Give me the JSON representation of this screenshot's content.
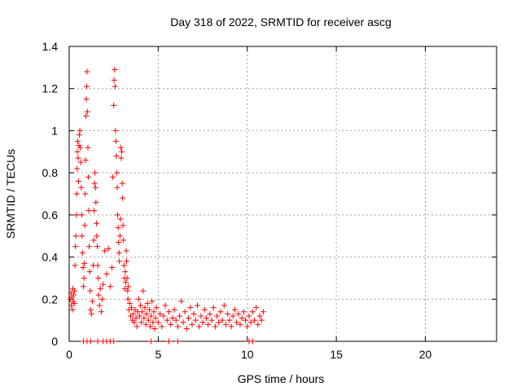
{
  "chart_data": {
    "type": "scatter",
    "title": "Day 318 of 2022, SRMTID for receiver ascg",
    "xlabel": "GPS time / hours",
    "ylabel": "SRMTID / TECUs",
    "xlim": [
      0,
      24
    ],
    "ylim": [
      0,
      1.4
    ],
    "x_ticks": [
      0,
      5,
      10,
      15,
      20
    ],
    "x_tick_labels": [
      "0",
      "5",
      "10",
      "15",
      "20"
    ],
    "y_ticks": [
      0,
      0.2,
      0.4,
      0.6,
      0.8,
      1,
      1.2,
      1.4
    ],
    "y_tick_labels": [
      "0",
      "0.2",
      "0.4",
      "0.6",
      "0.8",
      "1",
      "1.2",
      "1.4"
    ],
    "grid": true,
    "marker": "+",
    "series": [
      {
        "name": "SRMTID",
        "color": "#ff0000",
        "points": [
          [
            0.05,
            0.2
          ],
          [
            0.1,
            0.23
          ],
          [
            0.12,
            0.17
          ],
          [
            0.15,
            0.21
          ],
          [
            0.18,
            0.15
          ],
          [
            0.2,
            0.25
          ],
          [
            0.22,
            0.19
          ],
          [
            0.25,
            0.22
          ],
          [
            0.28,
            0.18
          ],
          [
            0.3,
            0.24
          ],
          [
            0.33,
            0.36
          ],
          [
            0.35,
            0.45
          ],
          [
            0.37,
            0.5
          ],
          [
            0.4,
            0.6
          ],
          [
            0.42,
            0.7
          ],
          [
            0.44,
            0.82
          ],
          [
            0.46,
            0.9
          ],
          [
            0.48,
            0.95
          ],
          [
            0.5,
            0.87
          ],
          [
            0.52,
            0.76
          ],
          [
            0.55,
            0.93
          ],
          [
            0.57,
            0.98
          ],
          [
            0.6,
            1.0
          ],
          [
            0.62,
            0.92
          ],
          [
            0.65,
            0.85
          ],
          [
            0.68,
            0.73
          ],
          [
            0.7,
            0.6
          ],
          [
            0.72,
            0.5
          ],
          [
            0.75,
            0.42
          ],
          [
            0.78,
            0.35
          ],
          [
            0.8,
            0.26
          ],
          [
            0.83,
            0.3
          ],
          [
            0.85,
            0.37
          ],
          [
            0.88,
            0.55
          ],
          [
            0.9,
            0.7
          ],
          [
            0.92,
            0.86
          ],
          [
            0.94,
            1.07
          ],
          [
            0.96,
            1.15
          ],
          [
            0.98,
            1.21
          ],
          [
            1.0,
            1.28
          ],
          [
            1.02,
            1.09
          ],
          [
            1.05,
            0.92
          ],
          [
            1.07,
            0.78
          ],
          [
            1.1,
            0.62
          ],
          [
            1.12,
            0.45
          ],
          [
            1.15,
            0.33
          ],
          [
            1.18,
            0.24
          ],
          [
            1.2,
            0.15
          ],
          [
            1.25,
            0.13
          ],
          [
            1.3,
            0.19
          ],
          [
            1.35,
            0.36
          ],
          [
            1.38,
            0.48
          ],
          [
            1.4,
            0.62
          ],
          [
            1.42,
            0.75
          ],
          [
            1.45,
            0.8
          ],
          [
            1.48,
            0.73
          ],
          [
            1.5,
            0.66
          ],
          [
            1.53,
            0.56
          ],
          [
            1.55,
            0.5
          ],
          [
            1.58,
            0.45
          ],
          [
            1.6,
            0.36
          ],
          [
            1.63,
            0.3
          ],
          [
            1.66,
            0.22
          ],
          [
            1.7,
            0.17
          ],
          [
            1.75,
            0.25
          ],
          [
            1.8,
            0.14
          ],
          [
            1.85,
            0.2
          ],
          [
            1.9,
            0.27
          ],
          [
            2.0,
            0.43
          ],
          [
            2.1,
            0.32
          ],
          [
            2.2,
            0.44
          ],
          [
            2.3,
            0.26
          ],
          [
            2.4,
            0.35
          ],
          [
            2.45,
            0.78
          ],
          [
            2.5,
            1.12
          ],
          [
            2.52,
            1.24
          ],
          [
            2.55,
            1.29
          ],
          [
            2.58,
            1.21
          ],
          [
            2.6,
            1.0
          ],
          [
            2.62,
            0.95
          ],
          [
            2.65,
            0.88
          ],
          [
            2.68,
            0.8
          ],
          [
            2.7,
            0.73
          ],
          [
            2.72,
            0.6
          ],
          [
            2.75,
            0.54
          ],
          [
            2.78,
            0.47
          ],
          [
            2.8,
            0.42
          ],
          [
            2.82,
            0.38
          ],
          [
            2.85,
            0.5
          ],
          [
            2.88,
            0.58
          ],
          [
            2.9,
            0.92
          ],
          [
            2.92,
            0.87
          ],
          [
            2.95,
            0.9
          ],
          [
            2.98,
            0.75
          ],
          [
            3.0,
            0.68
          ],
          [
            3.02,
            0.55
          ],
          [
            3.05,
            0.48
          ],
          [
            3.08,
            0.36
          ],
          [
            3.1,
            0.3
          ],
          [
            3.12,
            0.25
          ],
          [
            3.15,
            0.33
          ],
          [
            3.18,
            0.28
          ],
          [
            3.2,
            0.43
          ],
          [
            3.22,
            0.38
          ],
          [
            3.25,
            0.3
          ],
          [
            3.28,
            0.24
          ],
          [
            3.3,
            0.2
          ],
          [
            3.32,
            0.26
          ],
          [
            3.35,
            0.15
          ],
          [
            3.4,
            0.18
          ],
          [
            3.45,
            0.12
          ],
          [
            3.5,
            0.16
          ],
          [
            3.55,
            0.1
          ],
          [
            3.6,
            0.13
          ],
          [
            3.65,
            0.09
          ],
          [
            3.7,
            0.15
          ],
          [
            3.75,
            0.11
          ],
          [
            3.8,
            0.07
          ],
          [
            3.85,
            0.14
          ],
          [
            3.9,
            0.2
          ],
          [
            3.95,
            0.12
          ],
          [
            4.0,
            0.17
          ],
          [
            4.05,
            0.09
          ],
          [
            4.1,
            0.14
          ],
          [
            4.15,
            0.24
          ],
          [
            4.2,
            0.11
          ],
          [
            4.25,
            0.16
          ],
          [
            4.3,
            0.08
          ],
          [
            4.35,
            0.13
          ],
          [
            4.4,
            0.18
          ],
          [
            4.45,
            0.1
          ],
          [
            4.5,
            0.15
          ],
          [
            4.55,
            0.07
          ],
          [
            4.6,
            0.12
          ],
          [
            4.65,
            0.19
          ],
          [
            4.7,
            0.09
          ],
          [
            4.75,
            0.14
          ],
          [
            4.8,
            0.06
          ],
          [
            4.85,
            0.11
          ],
          [
            4.9,
            0.16
          ],
          [
            5.0,
            0.09
          ],
          [
            5.1,
            0.13
          ],
          [
            5.2,
            0.07
          ],
          [
            5.3,
            0.12
          ],
          [
            5.4,
            0.17
          ],
          [
            5.5,
            0.1
          ],
          [
            5.6,
            0.14
          ],
          [
            5.7,
            0.08
          ],
          [
            5.8,
            0.11
          ],
          [
            5.9,
            0.15
          ],
          [
            6.0,
            0.1
          ],
          [
            6.1,
            0.07
          ],
          [
            6.2,
            0.12
          ],
          [
            6.3,
            0.19
          ],
          [
            6.4,
            0.09
          ],
          [
            6.5,
            0.14
          ],
          [
            6.6,
            0.06
          ],
          [
            6.7,
            0.11
          ],
          [
            6.8,
            0.16
          ],
          [
            6.9,
            0.08
          ],
          [
            7.0,
            0.13
          ],
          [
            7.1,
            0.1
          ],
          [
            7.2,
            0.17
          ],
          [
            7.3,
            0.07
          ],
          [
            7.4,
            0.12
          ],
          [
            7.5,
            0.09
          ],
          [
            7.6,
            0.15
          ],
          [
            7.7,
            0.11
          ],
          [
            7.8,
            0.08
          ],
          [
            7.9,
            0.13
          ],
          [
            8.0,
            0.1
          ],
          [
            8.1,
            0.16
          ],
          [
            8.2,
            0.07
          ],
          [
            8.3,
            0.12
          ],
          [
            8.4,
            0.09
          ],
          [
            8.5,
            0.14
          ],
          [
            8.6,
            0.1
          ],
          [
            8.7,
            0.17
          ],
          [
            8.8,
            0.08
          ],
          [
            8.9,
            0.13
          ],
          [
            9.0,
            0.1
          ],
          [
            9.1,
            0.07
          ],
          [
            9.2,
            0.12
          ],
          [
            9.3,
            0.15
          ],
          [
            9.4,
            0.09
          ],
          [
            9.5,
            0.13
          ],
          [
            9.6,
            0.08
          ],
          [
            9.7,
            0.11
          ],
          [
            9.8,
            0.14
          ],
          [
            9.9,
            0.1
          ],
          [
            10.0,
            0.07
          ],
          [
            10.1,
            0.12
          ],
          [
            10.2,
            0.09
          ],
          [
            10.3,
            0.14
          ],
          [
            10.4,
            0.1
          ],
          [
            10.5,
            0.16
          ],
          [
            10.6,
            0.08
          ],
          [
            10.7,
            0.12
          ],
          [
            10.8,
            0.1
          ],
          [
            10.9,
            0.14
          ],
          [
            0.8,
            0
          ],
          [
            1.0,
            0
          ],
          [
            1.2,
            0
          ],
          [
            1.6,
            0
          ],
          [
            1.9,
            0
          ],
          [
            2.1,
            0
          ],
          [
            2.3,
            0
          ],
          [
            2.5,
            0
          ],
          [
            4.6,
            0
          ],
          [
            5.6,
            0
          ],
          [
            6.1,
            0
          ],
          [
            10.1,
            0
          ],
          [
            10.3,
            0
          ]
        ]
      }
    ]
  }
}
